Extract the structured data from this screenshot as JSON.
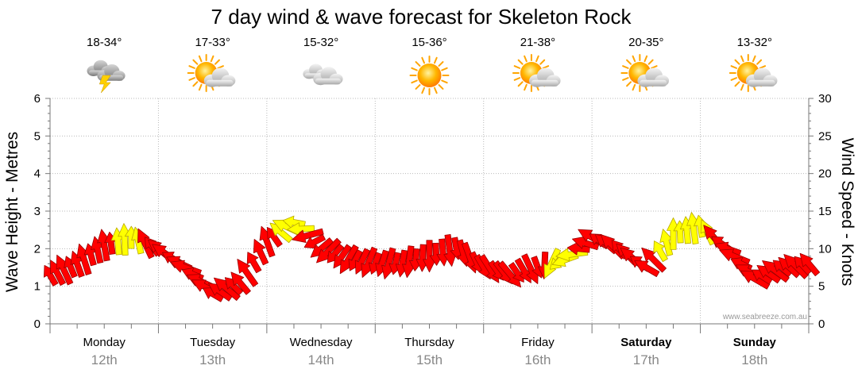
{
  "chart_data": {
    "type": "line",
    "title": "7 day wind & wave forecast for Skeleton Rock",
    "ylabel_left": "Wave Height - Metres",
    "ylabel_right": "Wind Speed - Knots",
    "ylim_left": [
      0,
      6
    ],
    "ylim_right": [
      0,
      30
    ],
    "yticks_left": [
      "0",
      "1",
      "2",
      "3",
      "4",
      "5",
      "6"
    ],
    "yticks_right": [
      "0",
      "5",
      "10",
      "15",
      "20",
      "25",
      "30"
    ],
    "grid": true,
    "watermark": "www.seabreeze.com.au",
    "days": [
      {
        "name": "Monday",
        "date": "12th",
        "temp": "18-34°",
        "weather": "storm-icon",
        "bold": false
      },
      {
        "name": "Tuesday",
        "date": "13th",
        "temp": "17-33°",
        "weather": "partly-cloudy-icon",
        "bold": false
      },
      {
        "name": "Wednesday",
        "date": "14th",
        "temp": "15-32°",
        "weather": "cloudy-icon",
        "bold": false
      },
      {
        "name": "Thursday",
        "date": "15th",
        "temp": "15-36°",
        "weather": "sunny-icon",
        "bold": false
      },
      {
        "name": "Friday",
        "date": "16th",
        "temp": "21-38°",
        "weather": "partly-cloudy-icon",
        "bold": false
      },
      {
        "name": "Saturday",
        "date": "17th",
        "temp": "20-35°",
        "weather": "partly-cloudy-icon",
        "bold": true
      },
      {
        "name": "Sunday",
        "date": "18th",
        "temp": "13-32°",
        "weather": "partly-cloudy-icon",
        "bold": true
      }
    ],
    "series": [
      {
        "name": "Wind Speed",
        "unit": "knots",
        "x_day": [
          0.0,
          0.25,
          0.5,
          0.75,
          1.0,
          1.25,
          1.5,
          1.75,
          2.0,
          2.25,
          2.5,
          2.75,
          3.0,
          3.25,
          3.5,
          3.75,
          4.0,
          4.25,
          4.5,
          4.75,
          5.0,
          5.25,
          5.5,
          5.75,
          6.0,
          6.25,
          6.5,
          6.75,
          7.0
        ],
        "values": [
          6.5,
          8.0,
          10.5,
          11.5,
          10.0,
          7.5,
          4.0,
          5.5,
          11.0,
          13.5,
          10.0,
          8.5,
          8.0,
          8.0,
          9.0,
          10.0,
          7.5,
          6.5,
          7.5,
          8.5,
          11.5,
          10.0,
          7.5,
          12.0,
          13.0,
          10.0,
          6.0,
          7.5,
          8.0
        ],
        "direction_deg": [
          240,
          250,
          260,
          270,
          220,
          200,
          210,
          230,
          250,
          190,
          140,
          120,
          110,
          100,
          90,
          80,
          60,
          50,
          70,
          160,
          210,
          230,
          210,
          270,
          260,
          200,
          210,
          220,
          230
        ],
        "colors": [
          "red",
          "red",
          "red",
          "yellow",
          "red",
          "red",
          "red",
          "red",
          "red",
          "yellow",
          "red",
          "red",
          "red",
          "red",
          "red",
          "red",
          "red",
          "red",
          "red",
          "yellow",
          "red",
          "red",
          "red",
          "yellow",
          "yellow",
          "red",
          "red",
          "red",
          "red"
        ]
      }
    ]
  },
  "colors": {
    "arrow_strong": "#ff0000",
    "arrow_light": "#ffff00",
    "grid": "#999999",
    "text": "#000000",
    "date_text": "#888888"
  }
}
